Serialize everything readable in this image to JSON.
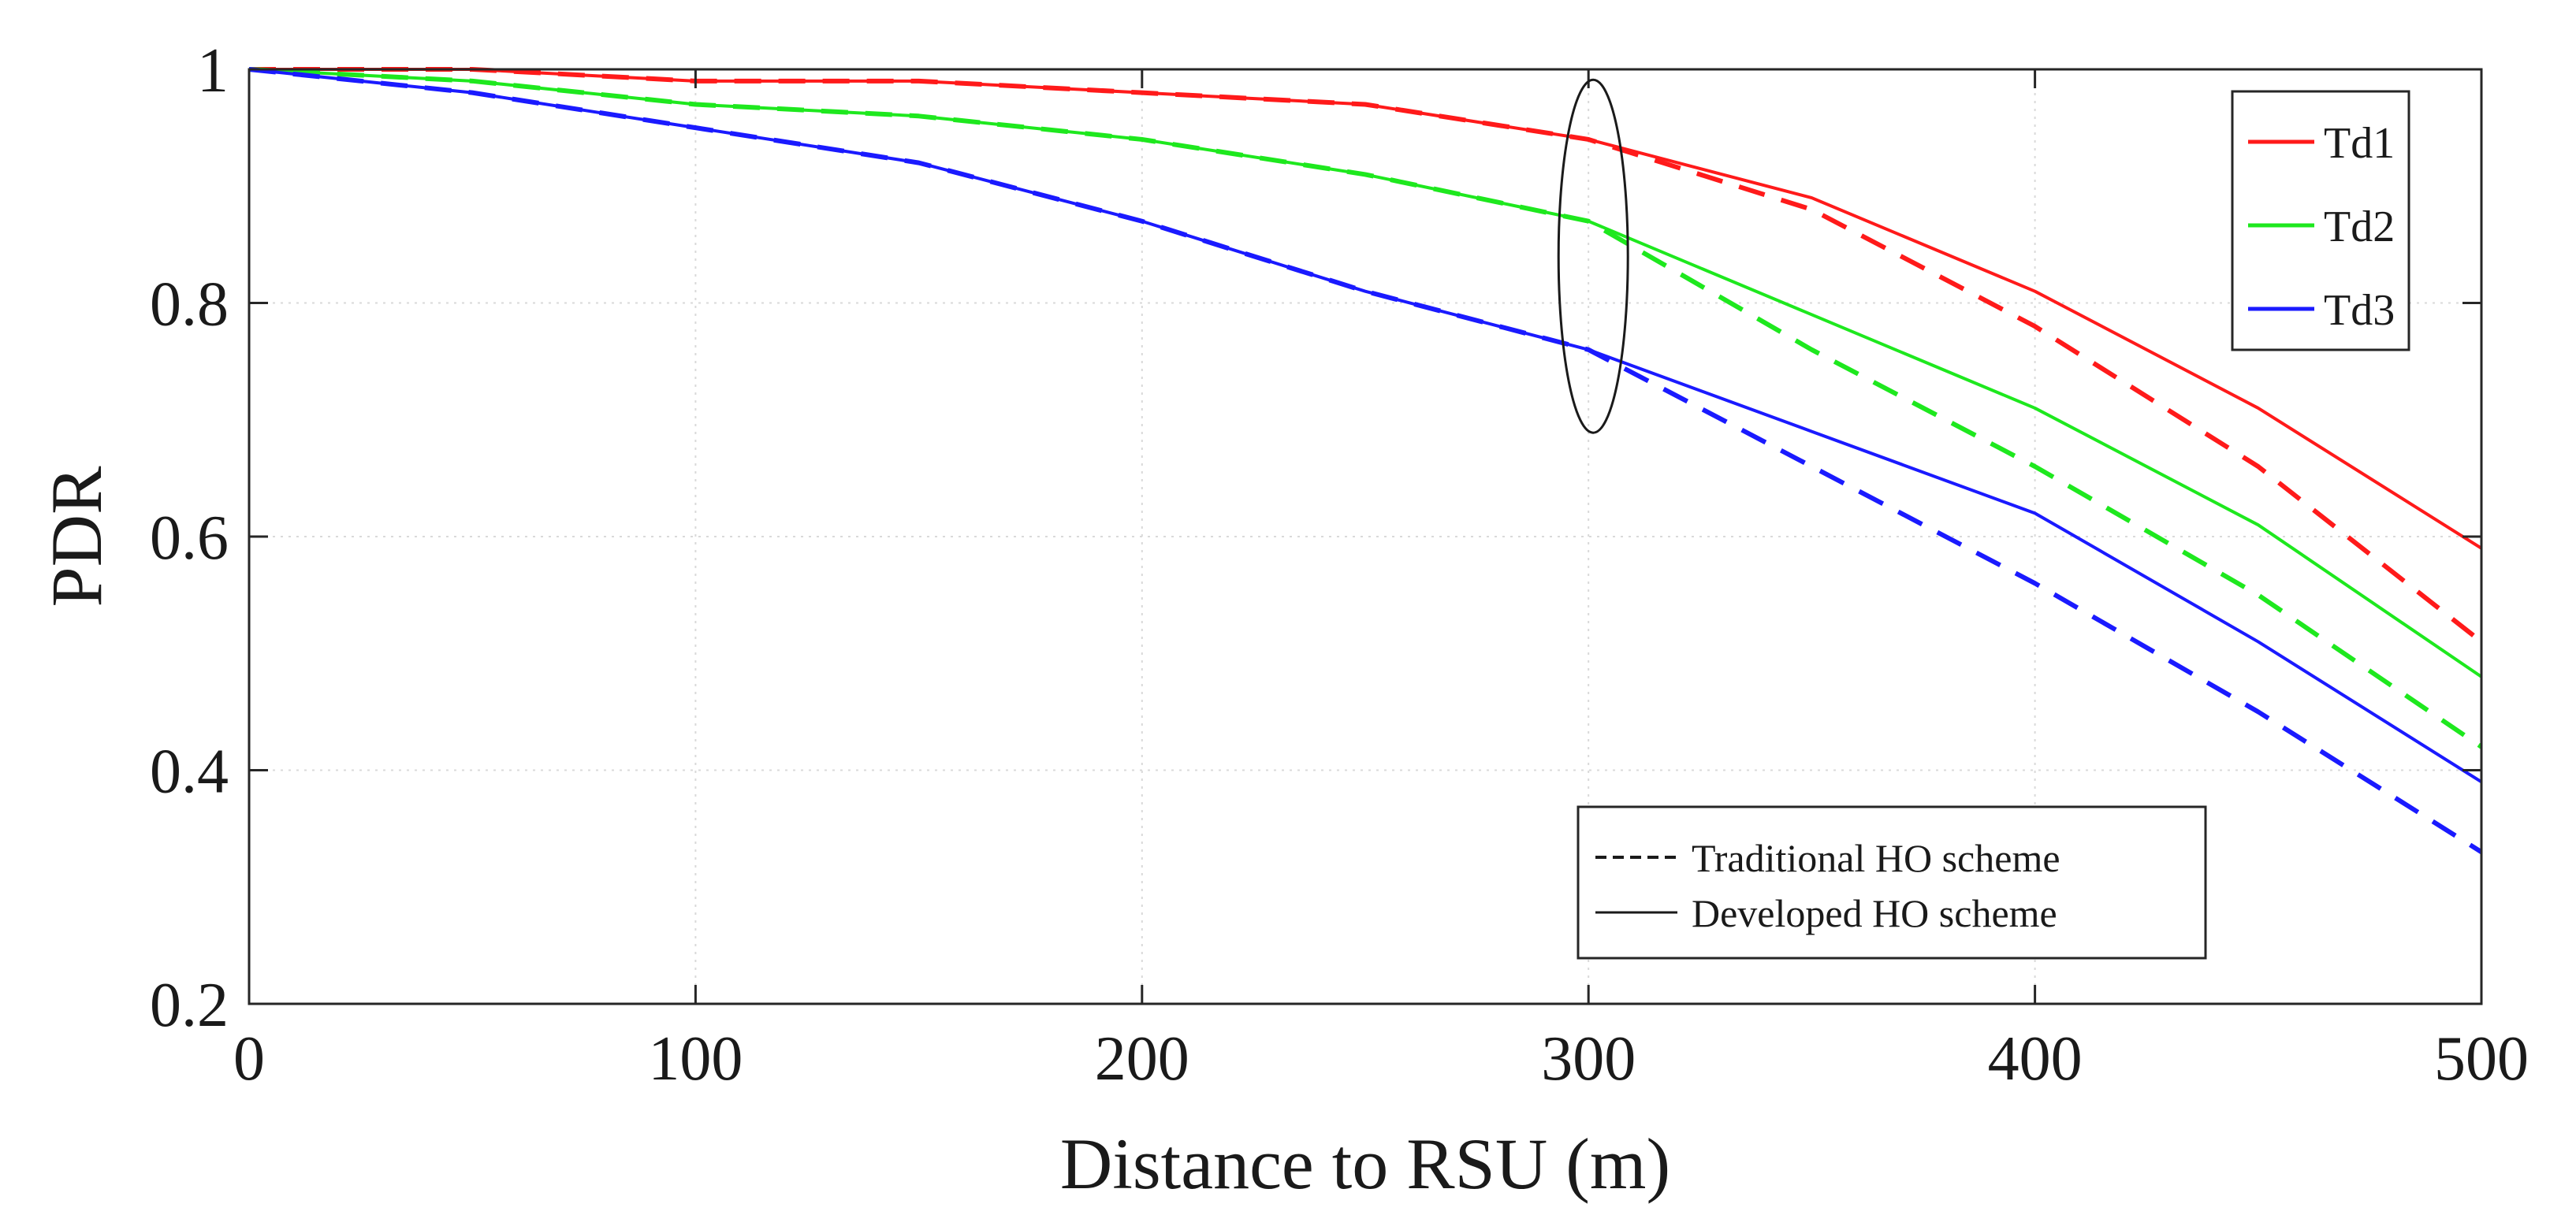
{
  "chart_data": {
    "type": "line",
    "title": "",
    "xlabel": "Distance to RSU (m)",
    "ylabel": "PDR",
    "xlim": [
      0,
      500
    ],
    "ylim": [
      0.2,
      1.0
    ],
    "x_ticks": [
      0,
      100,
      200,
      300,
      400,
      500
    ],
    "x_tick_labels": [
      "0",
      "100",
      "200",
      "300",
      "400",
      "500"
    ],
    "y_ticks": [
      0.2,
      0.4,
      0.6,
      0.8,
      1.0
    ],
    "y_tick_labels": [
      "0.2",
      "0.4",
      "0.6",
      "0.8",
      "1"
    ],
    "grid": true,
    "x": [
      0,
      50,
      100,
      150,
      200,
      250,
      300,
      350,
      400,
      450,
      500
    ],
    "series": [
      {
        "name": "Td1",
        "scheme": "Developed HO scheme",
        "color": "#ff1a1a",
        "style": "solid",
        "values": [
          1.0,
          1.0,
          0.99,
          0.99,
          0.98,
          0.97,
          0.94,
          0.89,
          0.81,
          0.71,
          0.59
        ]
      },
      {
        "name": "Td1",
        "scheme": "Traditional HO scheme",
        "color": "#ff1a1a",
        "style": "dashed",
        "values": [
          1.0,
          1.0,
          0.99,
          0.99,
          0.98,
          0.97,
          0.94,
          0.88,
          0.78,
          0.66,
          0.51
        ]
      },
      {
        "name": "Td2",
        "scheme": "Developed HO scheme",
        "color": "#1ee81e",
        "style": "solid",
        "values": [
          1.0,
          0.99,
          0.97,
          0.96,
          0.94,
          0.91,
          0.87,
          0.79,
          0.71,
          0.61,
          0.48
        ]
      },
      {
        "name": "Td2",
        "scheme": "Traditional HO scheme",
        "color": "#1ee81e",
        "style": "dashed",
        "values": [
          1.0,
          0.99,
          0.97,
          0.96,
          0.94,
          0.91,
          0.87,
          0.76,
          0.66,
          0.55,
          0.42
        ]
      },
      {
        "name": "Td3",
        "scheme": "Developed HO scheme",
        "color": "#1a1aff",
        "style": "solid",
        "values": [
          1.0,
          0.98,
          0.95,
          0.92,
          0.87,
          0.81,
          0.76,
          0.69,
          0.62,
          0.51,
          0.39
        ]
      },
      {
        "name": "Td3",
        "scheme": "Traditional HO scheme",
        "color": "#1a1aff",
        "style": "dashed",
        "values": [
          1.0,
          0.98,
          0.95,
          0.92,
          0.87,
          0.81,
          0.76,
          0.66,
          0.56,
          0.45,
          0.33
        ]
      }
    ],
    "ellipse_annotation": {
      "center_x": 300,
      "center_y": 0.84,
      "note": "highlights curve divergence at 300 m"
    },
    "legend_colors": {
      "position": "top-right",
      "entries": [
        {
          "label": "Td1",
          "color": "#ff1a1a"
        },
        {
          "label": "Td2",
          "color": "#1ee81e"
        },
        {
          "label": "Td3",
          "color": "#1a1aff"
        }
      ]
    },
    "legend_styles": {
      "position": "bottom-right",
      "entries": [
        {
          "label": "Traditional HO scheme",
          "style": "dashed"
        },
        {
          "label": "Developed HO scheme",
          "style": "solid"
        }
      ]
    }
  }
}
